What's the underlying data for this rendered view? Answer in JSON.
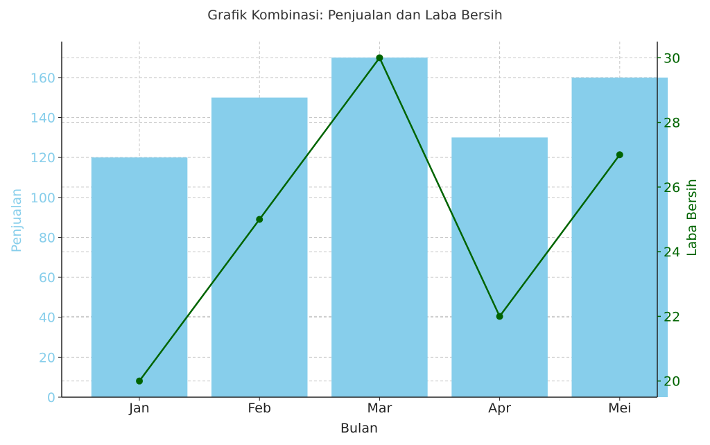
{
  "chart_data": {
    "type": "bar",
    "title": "Grafik Kombinasi: Penjualan dan Laba Bersih",
    "xlabel": "Bulan",
    "categories": [
      "Jan",
      "Feb",
      "Mar",
      "Apr",
      "Mei"
    ],
    "series": [
      {
        "name": "Penjualan",
        "type": "bar",
        "axis": "left",
        "values": [
          120,
          150,
          170,
          130,
          160
        ],
        "color": "#87ceeb"
      },
      {
        "name": "Laba Bersih",
        "type": "line",
        "axis": "right",
        "values": [
          20,
          25,
          30,
          22,
          27
        ],
        "color": "#006400"
      }
    ],
    "y_left": {
      "label": "Penjualan",
      "ylim": [
        0,
        178
      ],
      "ticks": [
        0,
        20,
        40,
        60,
        80,
        100,
        120,
        140,
        160
      ],
      "color": "#87ceeb"
    },
    "y_right": {
      "label": "Laba Bersih",
      "ylim": [
        19.5,
        30.5
      ],
      "ticks": [
        20,
        22,
        24,
        26,
        28,
        30
      ],
      "color": "#006400"
    },
    "grid": true
  }
}
